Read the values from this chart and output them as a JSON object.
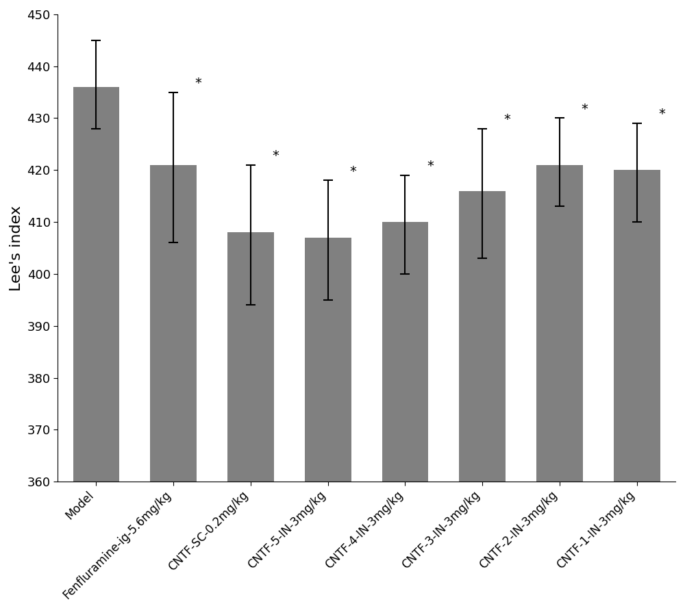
{
  "categories": [
    "Model",
    "Fenfluramine-ig-5.6mg/kg",
    "CNTF-SC-0.2mg/kg",
    "CNTF-5-IN-3mg/kg",
    "CNTF-4-IN-3mg/kg",
    "CNTF-3-IN-3mg/kg",
    "CNTF-2-IN-3mg/kg",
    "CNTF-1-IN-3mg/kg"
  ],
  "values": [
    436.0,
    421.0,
    408.0,
    407.0,
    410.0,
    416.0,
    421.0,
    420.0
  ],
  "errors_upper": [
    9.0,
    14.0,
    13.0,
    11.0,
    9.0,
    12.0,
    9.0,
    9.0
  ],
  "errors_lower": [
    8.0,
    15.0,
    14.0,
    12.0,
    10.0,
    13.0,
    8.0,
    10.0
  ],
  "bar_color": "#808080",
  "bar_edgecolor": "#808080",
  "ylim": [
    360,
    450
  ],
  "ybase": 360,
  "yticks": [
    360,
    370,
    380,
    390,
    400,
    410,
    420,
    430,
    440,
    450
  ],
  "ylabel": "Lee's index",
  "ylabel_fontsize": 16,
  "tick_fontsize": 13,
  "xlabel_fontsize": 12,
  "bar_width": 0.6,
  "significance_indices": [
    1,
    2,
    3,
    4,
    5,
    6,
    7
  ],
  "significance_symbol": "*",
  "background_color": "#ffffff",
  "figwidth": 10.0,
  "figheight": 8.92
}
